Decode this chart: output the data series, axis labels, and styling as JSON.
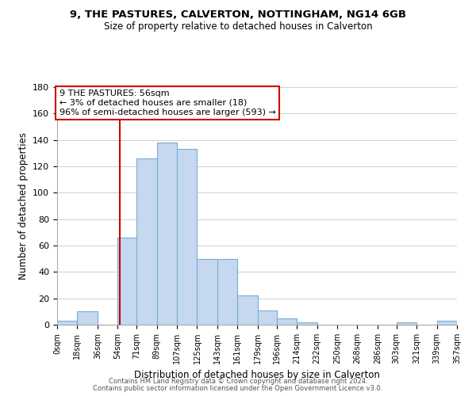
{
  "title1": "9, THE PASTURES, CALVERTON, NOTTINGHAM, NG14 6GB",
  "title2": "Size of property relative to detached houses in Calverton",
  "xlabel": "Distribution of detached houses by size in Calverton",
  "ylabel": "Number of detached properties",
  "bar_left_edges": [
    0,
    18,
    36,
    54,
    71,
    89,
    107,
    125,
    143,
    161,
    179,
    196,
    214,
    232,
    250,
    268,
    286,
    303,
    321,
    339
  ],
  "bar_widths": [
    18,
    18,
    18,
    17,
    18,
    18,
    18,
    18,
    18,
    18,
    17,
    18,
    18,
    18,
    18,
    18,
    17,
    18,
    18,
    18
  ],
  "bar_heights": [
    3,
    10,
    0,
    66,
    126,
    138,
    133,
    50,
    50,
    22,
    11,
    5,
    2,
    0,
    0,
    0,
    0,
    2,
    0,
    3
  ],
  "tick_labels": [
    "0sqm",
    "18sqm",
    "36sqm",
    "54sqm",
    "71sqm",
    "89sqm",
    "107sqm",
    "125sqm",
    "143sqm",
    "161sqm",
    "179sqm",
    "196sqm",
    "214sqm",
    "232sqm",
    "250sqm",
    "268sqm",
    "286sqm",
    "303sqm",
    "321sqm",
    "339sqm",
    "357sqm"
  ],
  "tick_positions": [
    0,
    18,
    36,
    54,
    71,
    89,
    107,
    125,
    143,
    161,
    179,
    196,
    214,
    232,
    250,
    268,
    286,
    303,
    321,
    339,
    357
  ],
  "bar_color": "#c5d8f0",
  "bar_edge_color": "#7badd4",
  "vline_x": 56,
  "vline_color": "#cc0000",
  "annotation_line1": "9 THE PASTURES: 56sqm",
  "annotation_line2": "← 3% of detached houses are smaller (18)",
  "annotation_line3": "96% of semi-detached houses are larger (593) →",
  "annotation_box_edge": "#cc0000",
  "ylim": [
    0,
    180
  ],
  "yticks": [
    0,
    20,
    40,
    60,
    80,
    100,
    120,
    140,
    160,
    180
  ],
  "xlim": [
    0,
    357
  ],
  "footer1": "Contains HM Land Registry data © Crown copyright and database right 2024.",
  "footer2": "Contains public sector information licensed under the Open Government Licence v3.0.",
  "bg_color": "#ffffff",
  "grid_color": "#d0d0d0"
}
